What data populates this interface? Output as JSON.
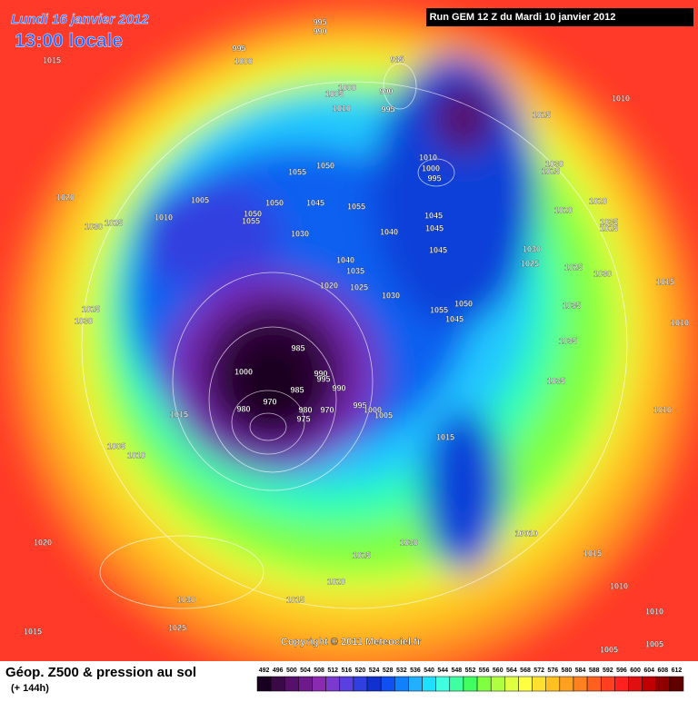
{
  "header": {
    "date": "Lundi 16 janvier 2012",
    "time": "13:00 locale",
    "run": "Run GEM 12 Z du Mardi 10 janvier 2012"
  },
  "map": {
    "copyright": "Copyright © 2011 Meteociel.fr",
    "pressure_labels": [
      "1015",
      "995",
      "990",
      "995",
      "1000",
      "985",
      "990",
      "1005",
      "1000",
      "1010",
      "995",
      "1010",
      "1025",
      "1010",
      "1000",
      "995",
      "1030",
      "1025",
      "1055",
      "1050",
      "1005",
      "1020",
      "1050",
      "1045",
      "1055",
      "1020",
      "1020",
      "1010",
      "1030",
      "1025",
      "1050",
      "1055",
      "1045",
      "1045",
      "1040",
      "1030",
      "1035",
      "1025",
      "1030",
      "1045",
      "1025",
      "1040",
      "1035",
      "1025",
      "1030",
      "1020",
      "1025",
      "1030",
      "1015",
      "1025",
      "1030",
      "1035",
      "1050",
      "1055",
      "1045",
      "1010",
      "1035",
      "1000",
      "985",
      "990",
      "995",
      "990",
      "970",
      "980",
      "1015",
      "985",
      "975",
      "980",
      "970",
      "995",
      "1000",
      "1005",
      "1035",
      "1010",
      "1015",
      "1005",
      "1010",
      "1020",
      "10010",
      "1025",
      "1030",
      "1015",
      "1020",
      "1010",
      "1030",
      "1015",
      "1010",
      "1015",
      "1025",
      "1005",
      "1005"
    ]
  },
  "footer": {
    "title": "Géop. Z500 & pression au sol",
    "lead": "(+ 144h)"
  },
  "scale": {
    "labels": [
      "492",
      "496",
      "500",
      "504",
      "508",
      "512",
      "516",
      "520",
      "524",
      "528",
      "532",
      "536",
      "540",
      "544",
      "548",
      "552",
      "556",
      "560",
      "564",
      "568",
      "572",
      "576",
      "580",
      "584",
      "588",
      "592",
      "596",
      "600",
      "604",
      "608",
      "612"
    ],
    "colors": [
      "#1a0020",
      "#3a0a46",
      "#56106a",
      "#6e1a8c",
      "#8a2ab0",
      "#7a3ad0",
      "#5a40e0",
      "#3040e0",
      "#1030d0",
      "#1050f0",
      "#1080ff",
      "#20b0ff",
      "#20e0ff",
      "#40ffe0",
      "#40ffa0",
      "#40ff60",
      "#80ff40",
      "#b0ff40",
      "#e0ff40",
      "#ffff40",
      "#ffe030",
      "#ffc020",
      "#ffa020",
      "#ff8020",
      "#ff6020",
      "#ff4020",
      "#ff2020",
      "#e01010",
      "#c00000",
      "#900000",
      "#600000"
    ]
  }
}
